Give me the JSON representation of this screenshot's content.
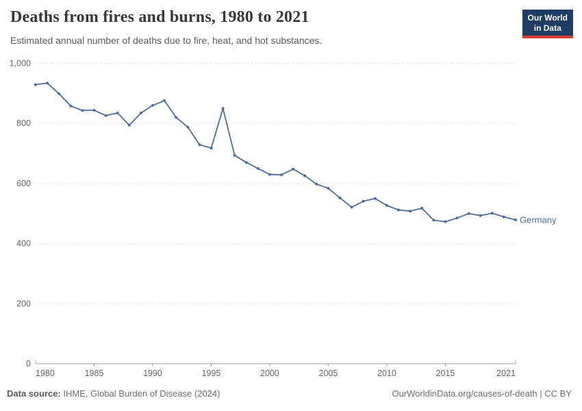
{
  "header": {
    "title": "Deaths from fires and burns, 1980 to 2021",
    "subtitle": "Estimated annual number of deaths due to fire, heat, and hot substances.",
    "logo": {
      "line1": "Our World",
      "line2": "in Data",
      "bg_color": "#1d3d63",
      "accent_color": "#d93a34"
    }
  },
  "chart_data": {
    "type": "line",
    "title": "Deaths from fires and burns, 1980 to 2021",
    "xlabel": "",
    "ylabel": "",
    "xlim": [
      1980,
      2021
    ],
    "ylim": [
      0,
      1000
    ],
    "grid": "horizontal-dashed",
    "legend_position": "end-of-line",
    "x_ticks": [
      1980,
      1985,
      1990,
      1995,
      2000,
      2005,
      2010,
      2015,
      2021
    ],
    "y_ticks": [
      0,
      200,
      400,
      600,
      800,
      1000
    ],
    "y_tick_labels": [
      "0",
      "200",
      "400",
      "600",
      "800",
      "1,000"
    ],
    "series": [
      {
        "name": "Germany",
        "color": "#4c6ba0",
        "x": [
          1980,
          1981,
          1982,
          1983,
          1984,
          1985,
          1986,
          1987,
          1988,
          1989,
          1990,
          1991,
          1992,
          1993,
          1994,
          1995,
          1996,
          1997,
          1998,
          1999,
          2000,
          2001,
          2002,
          2003,
          2004,
          2005,
          2006,
          2007,
          2008,
          2009,
          2010,
          2011,
          2012,
          2013,
          2014,
          2015,
          2016,
          2017,
          2018,
          2019,
          2020,
          2021
        ],
        "values": [
          929,
          934,
          899,
          858,
          843,
          844,
          826,
          835,
          794,
          835,
          860,
          876,
          820,
          788,
          729,
          718,
          850,
          694,
          670,
          650,
          630,
          629,
          648,
          626,
          598,
          584,
          552,
          521,
          541,
          550,
          527,
          512,
          508,
          518,
          478,
          473,
          485,
          500,
          493,
          501,
          489,
          479
        ]
      }
    ],
    "colors": {
      "gridline": "#dadada",
      "axis_line": "#a0a0a0",
      "tick_label": "#666666"
    }
  },
  "footer": {
    "source_label": "Data source:",
    "source_text": " IHME, Global Burden of Disease (2024)",
    "credit": "OurWorldinData.org/causes-of-death | CC BY"
  }
}
